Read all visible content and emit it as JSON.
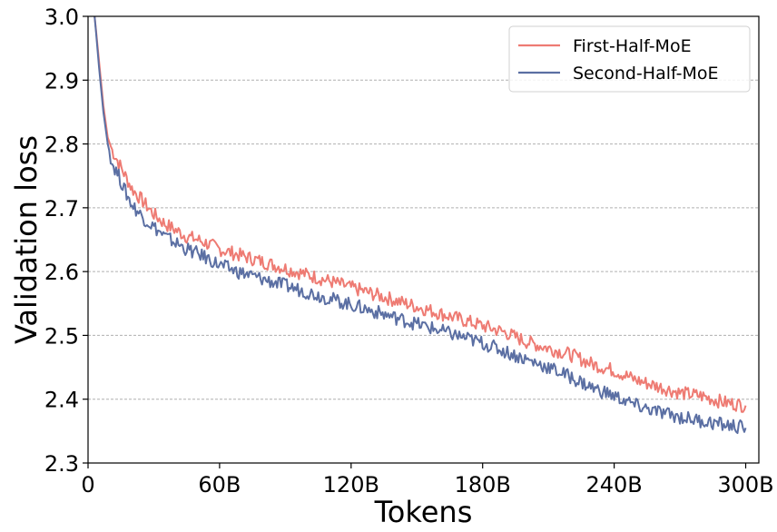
{
  "chart_data": {
    "type": "line",
    "xlabel": "Tokens",
    "ylabel": "Validation loss",
    "xlim": [
      0,
      306
    ],
    "ylim": [
      2.3,
      3.0
    ],
    "x_ticks": [
      0,
      60,
      120,
      180,
      240,
      300
    ],
    "x_tick_labels": [
      "0",
      "60B",
      "120B",
      "180B",
      "240B",
      "300B"
    ],
    "y_ticks": [
      2.3,
      2.4,
      2.5,
      2.6,
      2.7,
      2.8,
      2.9,
      3.0
    ],
    "y_tick_labels": [
      "2.3",
      "2.4",
      "2.5",
      "2.6",
      "2.7",
      "2.8",
      "2.9",
      "3.0"
    ],
    "grid": "horizontal-dashed",
    "legend_position": "top-right",
    "series": [
      {
        "name": "First-Half-MoE",
        "color": "#ee7b73",
        "x": [
          3,
          5,
          7,
          9,
          11,
          14,
          17,
          20,
          25,
          30,
          35,
          40,
          45,
          50,
          55,
          60,
          70,
          80,
          90,
          100,
          110,
          120,
          130,
          140,
          150,
          160,
          170,
          180,
          190,
          200,
          210,
          220,
          230,
          240,
          250,
          260,
          270,
          280,
          290,
          300
        ],
        "y": [
          3.0,
          2.93,
          2.86,
          2.81,
          2.79,
          2.77,
          2.75,
          2.73,
          2.71,
          2.69,
          2.675,
          2.665,
          2.655,
          2.65,
          2.643,
          2.635,
          2.625,
          2.615,
          2.605,
          2.595,
          2.585,
          2.575,
          2.565,
          2.555,
          2.545,
          2.535,
          2.525,
          2.515,
          2.505,
          2.49,
          2.48,
          2.47,
          2.455,
          2.445,
          2.43,
          2.42,
          2.41,
          2.405,
          2.395,
          2.39
        ]
      },
      {
        "name": "Second-Half-MoE",
        "color": "#5b6fa3",
        "x": [
          3,
          5,
          7,
          9,
          11,
          14,
          17,
          20,
          25,
          30,
          35,
          40,
          45,
          50,
          55,
          60,
          70,
          80,
          90,
          100,
          110,
          120,
          130,
          140,
          150,
          160,
          170,
          180,
          190,
          200,
          210,
          220,
          230,
          240,
          250,
          260,
          270,
          280,
          290,
          300
        ],
        "y": [
          3.0,
          2.92,
          2.85,
          2.8,
          2.77,
          2.75,
          2.725,
          2.705,
          2.685,
          2.67,
          2.655,
          2.645,
          2.635,
          2.628,
          2.62,
          2.61,
          2.598,
          2.588,
          2.578,
          2.568,
          2.558,
          2.548,
          2.538,
          2.528,
          2.518,
          2.508,
          2.498,
          2.488,
          2.475,
          2.462,
          2.45,
          2.435,
          2.418,
          2.405,
          2.39,
          2.38,
          2.372,
          2.366,
          2.36,
          2.355
        ]
      }
    ]
  }
}
